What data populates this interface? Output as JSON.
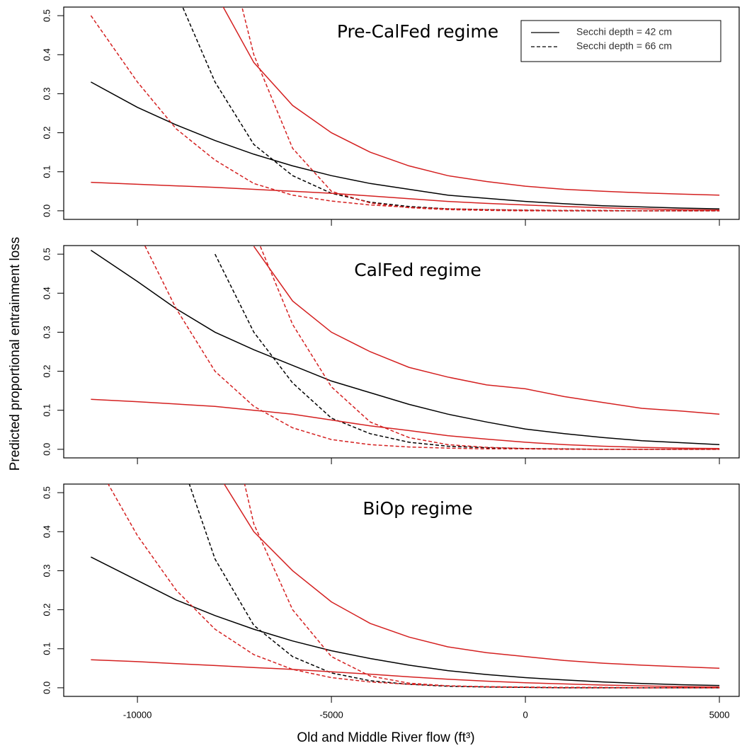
{
  "xlabel": "Old and Middle River flow (ft³)",
  "ylabel": "Predicted proportional entrainment loss",
  "chart_data": [
    {
      "type": "line",
      "title": "Pre-CalFed regime",
      "legend": "upper right",
      "show_xtick_labels": false,
      "x": [
        -11200,
        -10000,
        -9000,
        -8000,
        -7000,
        -6000,
        -5000,
        -4000,
        -3000,
        -2000,
        -1000,
        0,
        1000,
        2000,
        3000,
        4000,
        5000
      ],
      "xlim": [
        -11900,
        5510
      ],
      "xticks": [
        -10000,
        -5000,
        0,
        5000
      ],
      "ylim": [
        -0.022,
        0.522
      ],
      "yticks": [
        {
          "value": 0,
          "label": "0.0"
        },
        0.1,
        0.2,
        0.3,
        0.4,
        0.5
      ],
      "series": [
        {
          "name": "Secchi depth = 42 cm",
          "color": "#000000",
          "linestyle": "solid",
          "values": [
            0.33,
            0.265,
            0.22,
            0.18,
            0.145,
            0.115,
            0.09,
            0.07,
            0.055,
            0.04,
            0.032,
            0.024,
            0.018,
            0.013,
            0.01,
            0.007,
            0.005
          ]
        },
        {
          "name": "Secchi depth = 66 cm",
          "color": "#000000",
          "linestyle": "dashed",
          "values": [
            null,
            null,
            0.56,
            0.33,
            0.17,
            0.09,
            0.045,
            0.022,
            0.011,
            0.005,
            0.003,
            0.001,
            0,
            0,
            0,
            0,
            0
          ]
        },
        {
          "color": "#d42020",
          "linestyle": "solid",
          "values": [
            null,
            null,
            null,
            0.56,
            0.38,
            0.27,
            0.2,
            0.15,
            0.115,
            0.09,
            0.075,
            0.063,
            0.055,
            0.05,
            0.046,
            0.043,
            0.04
          ]
        },
        {
          "color": "#d42020",
          "linestyle": "solid",
          "values": [
            0.073,
            0.068,
            0.064,
            0.06,
            0.055,
            0.05,
            0.045,
            0.038,
            0.031,
            0.024,
            0.019,
            0.015,
            0.011,
            0.008,
            0.005,
            0.003,
            0.002
          ]
        },
        {
          "color": "#d42020",
          "linestyle": "dashed",
          "values": [
            0.5,
            0.33,
            0.21,
            0.13,
            0.07,
            0.04,
            0.025,
            0.015,
            0.009,
            0.005,
            0.003,
            0.002,
            0.001,
            0.001,
            0,
            0,
            0
          ]
        },
        {
          "color": "#d42020",
          "linestyle": "dashed",
          "values": [
            null,
            null,
            null,
            0.8,
            0.4,
            0.16,
            0.05,
            0.02,
            0.008,
            0.003,
            0.001,
            0,
            0,
            0,
            0,
            0,
            0
          ]
        }
      ]
    },
    {
      "type": "line",
      "title": "CalFed regime",
      "show_xtick_labels": false,
      "x": [
        -11200,
        -10000,
        -9000,
        -8000,
        -7000,
        -6000,
        -5000,
        -4000,
        -3000,
        -2000,
        -1000,
        0,
        1000,
        2000,
        3000,
        4000,
        5000
      ],
      "xlim": [
        -11900,
        5510
      ],
      "xticks": [
        -10000,
        -5000,
        0,
        5000
      ],
      "ylim": [
        -0.022,
        0.522
      ],
      "yticks": [
        {
          "value": 0,
          "label": "0.0"
        },
        0.1,
        0.2,
        0.3,
        0.4,
        0.5
      ],
      "series": [
        {
          "color": "#000000",
          "linestyle": "solid",
          "values": [
            0.51,
            0.43,
            0.36,
            0.3,
            0.255,
            0.215,
            0.175,
            0.145,
            0.115,
            0.09,
            0.07,
            0.052,
            0.04,
            0.03,
            0.022,
            0.017,
            0.012
          ]
        },
        {
          "color": "#000000",
          "linestyle": "dashed",
          "values": [
            null,
            null,
            null,
            0.5,
            0.3,
            0.17,
            0.08,
            0.04,
            0.018,
            0.008,
            0.004,
            0.002,
            0.001,
            0,
            0,
            0,
            0
          ]
        },
        {
          "color": "#d42020",
          "linestyle": "solid",
          "values": [
            null,
            null,
            null,
            null,
            0.52,
            0.38,
            0.3,
            0.25,
            0.21,
            0.185,
            0.165,
            0.155,
            0.135,
            0.12,
            0.105,
            0.098,
            0.09
          ]
        },
        {
          "color": "#d42020",
          "linestyle": "solid",
          "values": [
            0.128,
            0.122,
            0.116,
            0.11,
            0.1,
            0.09,
            0.075,
            0.06,
            0.048,
            0.035,
            0.026,
            0.018,
            0.012,
            0.008,
            0.005,
            0.003,
            0.002
          ]
        },
        {
          "color": "#d42020",
          "linestyle": "dashed",
          "values": [
            null,
            0.56,
            0.36,
            0.2,
            0.11,
            0.055,
            0.025,
            0.012,
            0.006,
            0.003,
            0.001,
            0.001,
            0,
            0,
            0,
            0,
            0
          ]
        },
        {
          "color": "#d42020",
          "linestyle": "dashed",
          "values": [
            null,
            null,
            null,
            null,
            0.56,
            0.32,
            0.16,
            0.07,
            0.03,
            0.012,
            0.005,
            0.002,
            0.001,
            0,
            0,
            0,
            0
          ]
        }
      ]
    },
    {
      "type": "line",
      "title": "BiOp regime",
      "show_xtick_labels": true,
      "x": [
        -11200,
        -10000,
        -9000,
        -8000,
        -7000,
        -6000,
        -5000,
        -4000,
        -3000,
        -2000,
        -1000,
        0,
        1000,
        2000,
        3000,
        4000,
        5000
      ],
      "xlim": [
        -11900,
        5510
      ],
      "xticks": [
        -10000,
        -5000,
        0,
        5000
      ],
      "ylim": [
        -0.022,
        0.522
      ],
      "yticks": [
        {
          "value": 0,
          "label": "0.0"
        },
        0.1,
        0.2,
        0.3,
        0.4,
        0.5
      ],
      "series": [
        {
          "color": "#000000",
          "linestyle": "solid",
          "values": [
            0.335,
            0.275,
            0.225,
            0.185,
            0.15,
            0.12,
            0.095,
            0.075,
            0.058,
            0.044,
            0.034,
            0.026,
            0.02,
            0.015,
            0.011,
            0.008,
            0.006
          ]
        },
        {
          "color": "#000000",
          "linestyle": "dashed",
          "values": [
            null,
            null,
            0.62,
            0.33,
            0.16,
            0.08,
            0.038,
            0.018,
            0.009,
            0.004,
            0.002,
            0.001,
            0,
            0,
            0,
            0,
            0
          ]
        },
        {
          "color": "#d42020",
          "linestyle": "solid",
          "values": [
            null,
            null,
            null,
            0.56,
            0.4,
            0.3,
            0.22,
            0.165,
            0.13,
            0.105,
            0.09,
            0.08,
            0.07,
            0.063,
            0.058,
            0.054,
            0.05
          ]
        },
        {
          "color": "#d42020",
          "linestyle": "solid",
          "values": [
            0.072,
            0.067,
            0.062,
            0.057,
            0.052,
            0.047,
            0.041,
            0.035,
            0.028,
            0.022,
            0.017,
            0.013,
            0.01,
            0.007,
            0.005,
            0.003,
            0.002
          ]
        },
        {
          "color": "#d42020",
          "linestyle": "dashed",
          "values": [
            0.6,
            0.39,
            0.25,
            0.15,
            0.085,
            0.047,
            0.026,
            0.015,
            0.009,
            0.005,
            0.003,
            0.002,
            0.001,
            0.001,
            0,
            0,
            0
          ]
        },
        {
          "color": "#d42020",
          "linestyle": "dashed",
          "values": [
            null,
            null,
            null,
            0.85,
            0.42,
            0.2,
            0.08,
            0.03,
            0.012,
            0.005,
            0.002,
            0.001,
            0,
            0,
            0,
            0,
            0
          ]
        }
      ]
    }
  ]
}
